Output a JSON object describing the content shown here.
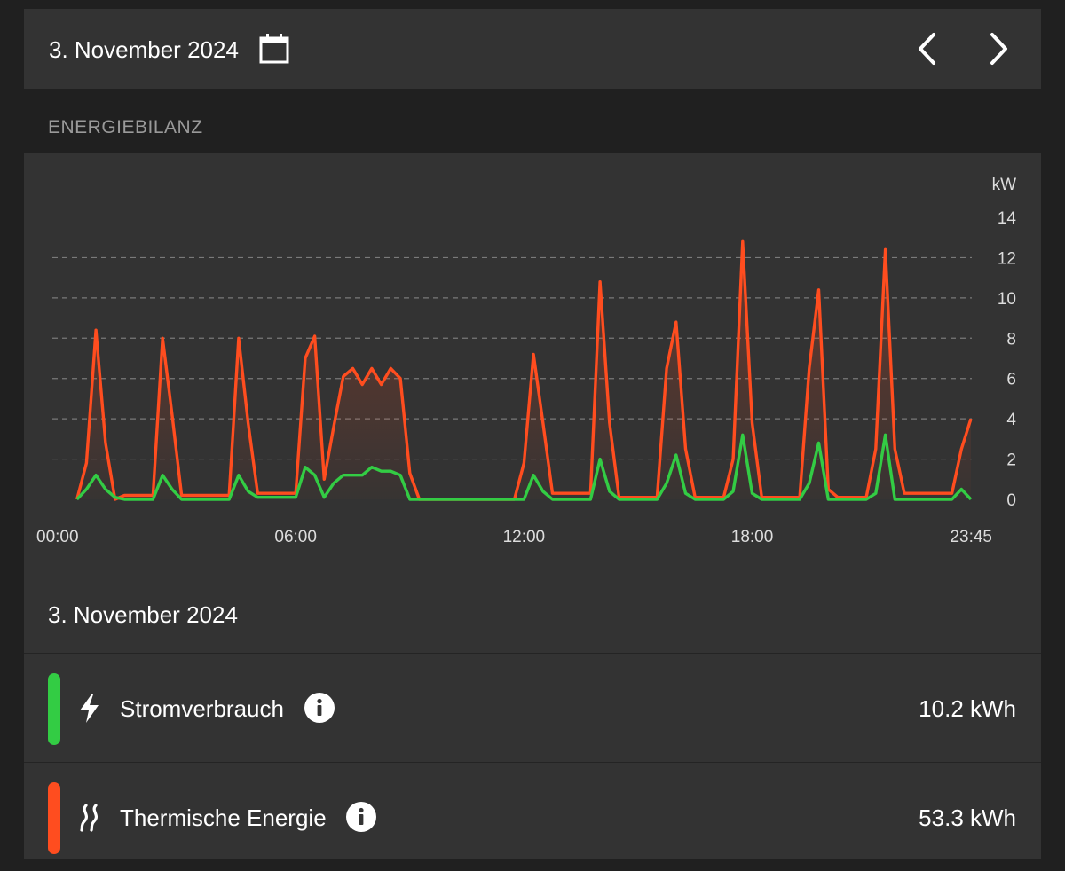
{
  "header": {
    "date_label": "3. November 2024",
    "calendar_icon": "calendar-icon",
    "prev_icon": "chevron-left-icon",
    "next_icon": "chevron-right-icon"
  },
  "section_title": "ENERGIEBILANZ",
  "chart_data": {
    "type": "area",
    "title": "",
    "xlabel": "",
    "ylabel": "kW",
    "x_start": "00:00",
    "x_end": "23:45",
    "xticks": [
      "00:00",
      "06:00",
      "12:00",
      "18:00",
      "23:45"
    ],
    "yticks": [
      0,
      2,
      4,
      6,
      8,
      10,
      12,
      14
    ],
    "ylim": [
      0,
      14
    ],
    "grid": true,
    "legend": "none",
    "series": [
      {
        "color": "#ff4d1f",
        "fill": true,
        "x": [
          "00:15",
          "00:30",
          "00:45",
          "01:00",
          "01:15",
          "01:30",
          "01:45",
          "02:00",
          "02:15",
          "02:30",
          "02:45",
          "03:00",
          "03:15",
          "03:30",
          "03:45",
          "04:00",
          "04:15",
          "04:30",
          "04:45",
          "05:00",
          "05:15",
          "05:30",
          "05:45",
          "06:00",
          "06:15",
          "06:30",
          "06:45",
          "07:00",
          "07:15",
          "07:30",
          "07:45",
          "08:00",
          "08:15",
          "08:30",
          "08:45",
          "09:00",
          "09:15",
          "09:30",
          "11:45",
          "12:00",
          "12:15",
          "12:30",
          "12:45",
          "13:00",
          "13:15",
          "13:30",
          "13:45",
          "14:00",
          "14:15",
          "14:30",
          "14:45",
          "15:00",
          "15:15",
          "15:30",
          "15:45",
          "16:00",
          "16:15",
          "16:30",
          "16:45",
          "17:00",
          "17:15",
          "17:30",
          "17:45",
          "18:00",
          "18:15",
          "18:30",
          "18:45",
          "19:00",
          "19:15",
          "19:30",
          "19:45",
          "20:00",
          "20:15",
          "20:30",
          "20:45",
          "21:00",
          "21:15",
          "21:30",
          "21:45",
          "22:00",
          "22:15",
          "22:30",
          "22:45",
          "23:00",
          "23:15",
          "23:30",
          "23:45"
        ],
        "values": [
          0,
          1.8,
          8.4,
          2.8,
          0,
          0.2,
          0.2,
          0.2,
          0.2,
          8.0,
          4.2,
          0.2,
          0.2,
          0.2,
          0.2,
          0.2,
          0.2,
          8.0,
          3.8,
          0.3,
          0.3,
          0.3,
          0.3,
          0.3,
          7.0,
          8.1,
          1.0,
          3.6,
          6.1,
          6.5,
          5.7,
          6.5,
          5.7,
          6.5,
          6.0,
          1.3,
          0,
          0,
          0,
          1.8,
          7.2,
          3.8,
          0.3,
          0.3,
          0.3,
          0.3,
          0.3,
          10.8,
          3.8,
          0.1,
          0.1,
          0.1,
          0.1,
          0.1,
          6.5,
          8.8,
          2.5,
          0.1,
          0.1,
          0.1,
          0.1,
          2.0,
          12.8,
          3.8,
          0.1,
          0.1,
          0.1,
          0.1,
          0.1,
          6.5,
          10.4,
          0.5,
          0.1,
          0.1,
          0.1,
          0.1,
          2.5,
          12.4,
          2.5,
          0.3,
          0.3,
          0.3,
          0.3,
          0.3,
          0.3,
          2.5,
          4.0
        ]
      },
      {
        "color": "#33cc44",
        "fill": false,
        "x": [
          "00:15",
          "00:30",
          "00:45",
          "01:00",
          "01:15",
          "01:30",
          "01:45",
          "02:00",
          "02:15",
          "02:30",
          "02:45",
          "03:00",
          "03:15",
          "03:30",
          "03:45",
          "04:00",
          "04:15",
          "04:30",
          "04:45",
          "05:00",
          "05:15",
          "05:30",
          "05:45",
          "06:00",
          "06:15",
          "06:30",
          "06:45",
          "07:00",
          "07:15",
          "07:30",
          "07:45",
          "08:00",
          "08:15",
          "08:30",
          "08:45",
          "09:00",
          "09:15",
          "09:30",
          "11:45",
          "12:00",
          "12:15",
          "12:30",
          "12:45",
          "13:00",
          "13:15",
          "13:30",
          "13:45",
          "14:00",
          "14:15",
          "14:30",
          "14:45",
          "15:00",
          "15:15",
          "15:30",
          "15:45",
          "16:00",
          "16:15",
          "16:30",
          "16:45",
          "17:00",
          "17:15",
          "17:30",
          "17:45",
          "18:00",
          "18:15",
          "18:30",
          "18:45",
          "19:00",
          "19:15",
          "19:30",
          "19:45",
          "20:00",
          "20:15",
          "20:30",
          "20:45",
          "21:00",
          "21:15",
          "21:30",
          "21:45",
          "22:00",
          "22:15",
          "22:30",
          "22:45",
          "23:00",
          "23:15",
          "23:30",
          "23:45"
        ],
        "values": [
          0,
          0.5,
          1.2,
          0.5,
          0.1,
          0,
          0,
          0,
          0,
          1.2,
          0.5,
          0,
          0,
          0,
          0,
          0,
          0,
          1.2,
          0.4,
          0.1,
          0.1,
          0.1,
          0.1,
          0.1,
          1.6,
          1.2,
          0.1,
          0.8,
          1.2,
          1.2,
          1.2,
          1.6,
          1.4,
          1.4,
          1.2,
          0,
          0,
          0,
          0,
          0,
          1.2,
          0.4,
          0,
          0,
          0,
          0,
          0,
          2.0,
          0.4,
          0,
          0,
          0,
          0,
          0,
          0.8,
          2.2,
          0.3,
          0,
          0,
          0,
          0,
          0.4,
          3.2,
          0.3,
          0,
          0,
          0,
          0,
          0,
          0.8,
          2.8,
          0,
          0,
          0,
          0,
          0,
          0.3,
          3.2,
          0,
          0,
          0,
          0,
          0,
          0,
          0,
          0.5,
          0
        ]
      }
    ]
  },
  "summary": {
    "date_label": "3. November 2024",
    "rows": [
      {
        "color": "#33cc44",
        "icon": "lightning-icon",
        "label": "Stromverbrauch",
        "info_icon": "info-icon",
        "value": "10.2 kWh"
      },
      {
        "color": "#ff4d1f",
        "icon": "heat-waves-icon",
        "label": "Thermische Energie",
        "info_icon": "info-icon",
        "value": "53.3 kWh"
      }
    ]
  }
}
